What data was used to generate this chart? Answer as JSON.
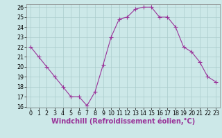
{
  "x": [
    0,
    1,
    2,
    3,
    4,
    5,
    6,
    7,
    8,
    9,
    10,
    11,
    12,
    13,
    14,
    15,
    16,
    17,
    18,
    19,
    20,
    21,
    22,
    23
  ],
  "y": [
    22,
    21,
    20,
    19,
    18,
    17,
    17,
    16.1,
    17.5,
    20.2,
    23,
    24.8,
    25,
    25.8,
    26,
    26,
    25,
    25,
    24,
    22,
    21.5,
    20.5,
    19,
    18.5
  ],
  "line_color": "#993399",
  "marker_color": "#993399",
  "bg_color": "#cce8e8",
  "grid_color": "#aacccc",
  "xlabel": "Windchill (Refroidissement éolien,°C)",
  "xlabel_color": "#993399",
  "ylim_min": 16,
  "ylim_max": 26,
  "xlim_min": -0.5,
  "xlim_max": 23.5,
  "yticks": [
    16,
    17,
    18,
    19,
    20,
    21,
    22,
    23,
    24,
    25,
    26
  ],
  "xticks": [
    0,
    1,
    2,
    3,
    4,
    5,
    6,
    7,
    8,
    9,
    10,
    11,
    12,
    13,
    14,
    15,
    16,
    17,
    18,
    19,
    20,
    21,
    22,
    23
  ],
  "tick_label_fontsize": 5.8,
  "xlabel_fontsize": 7.0,
  "marker_size": 2.0,
  "linewidth": 0.8
}
